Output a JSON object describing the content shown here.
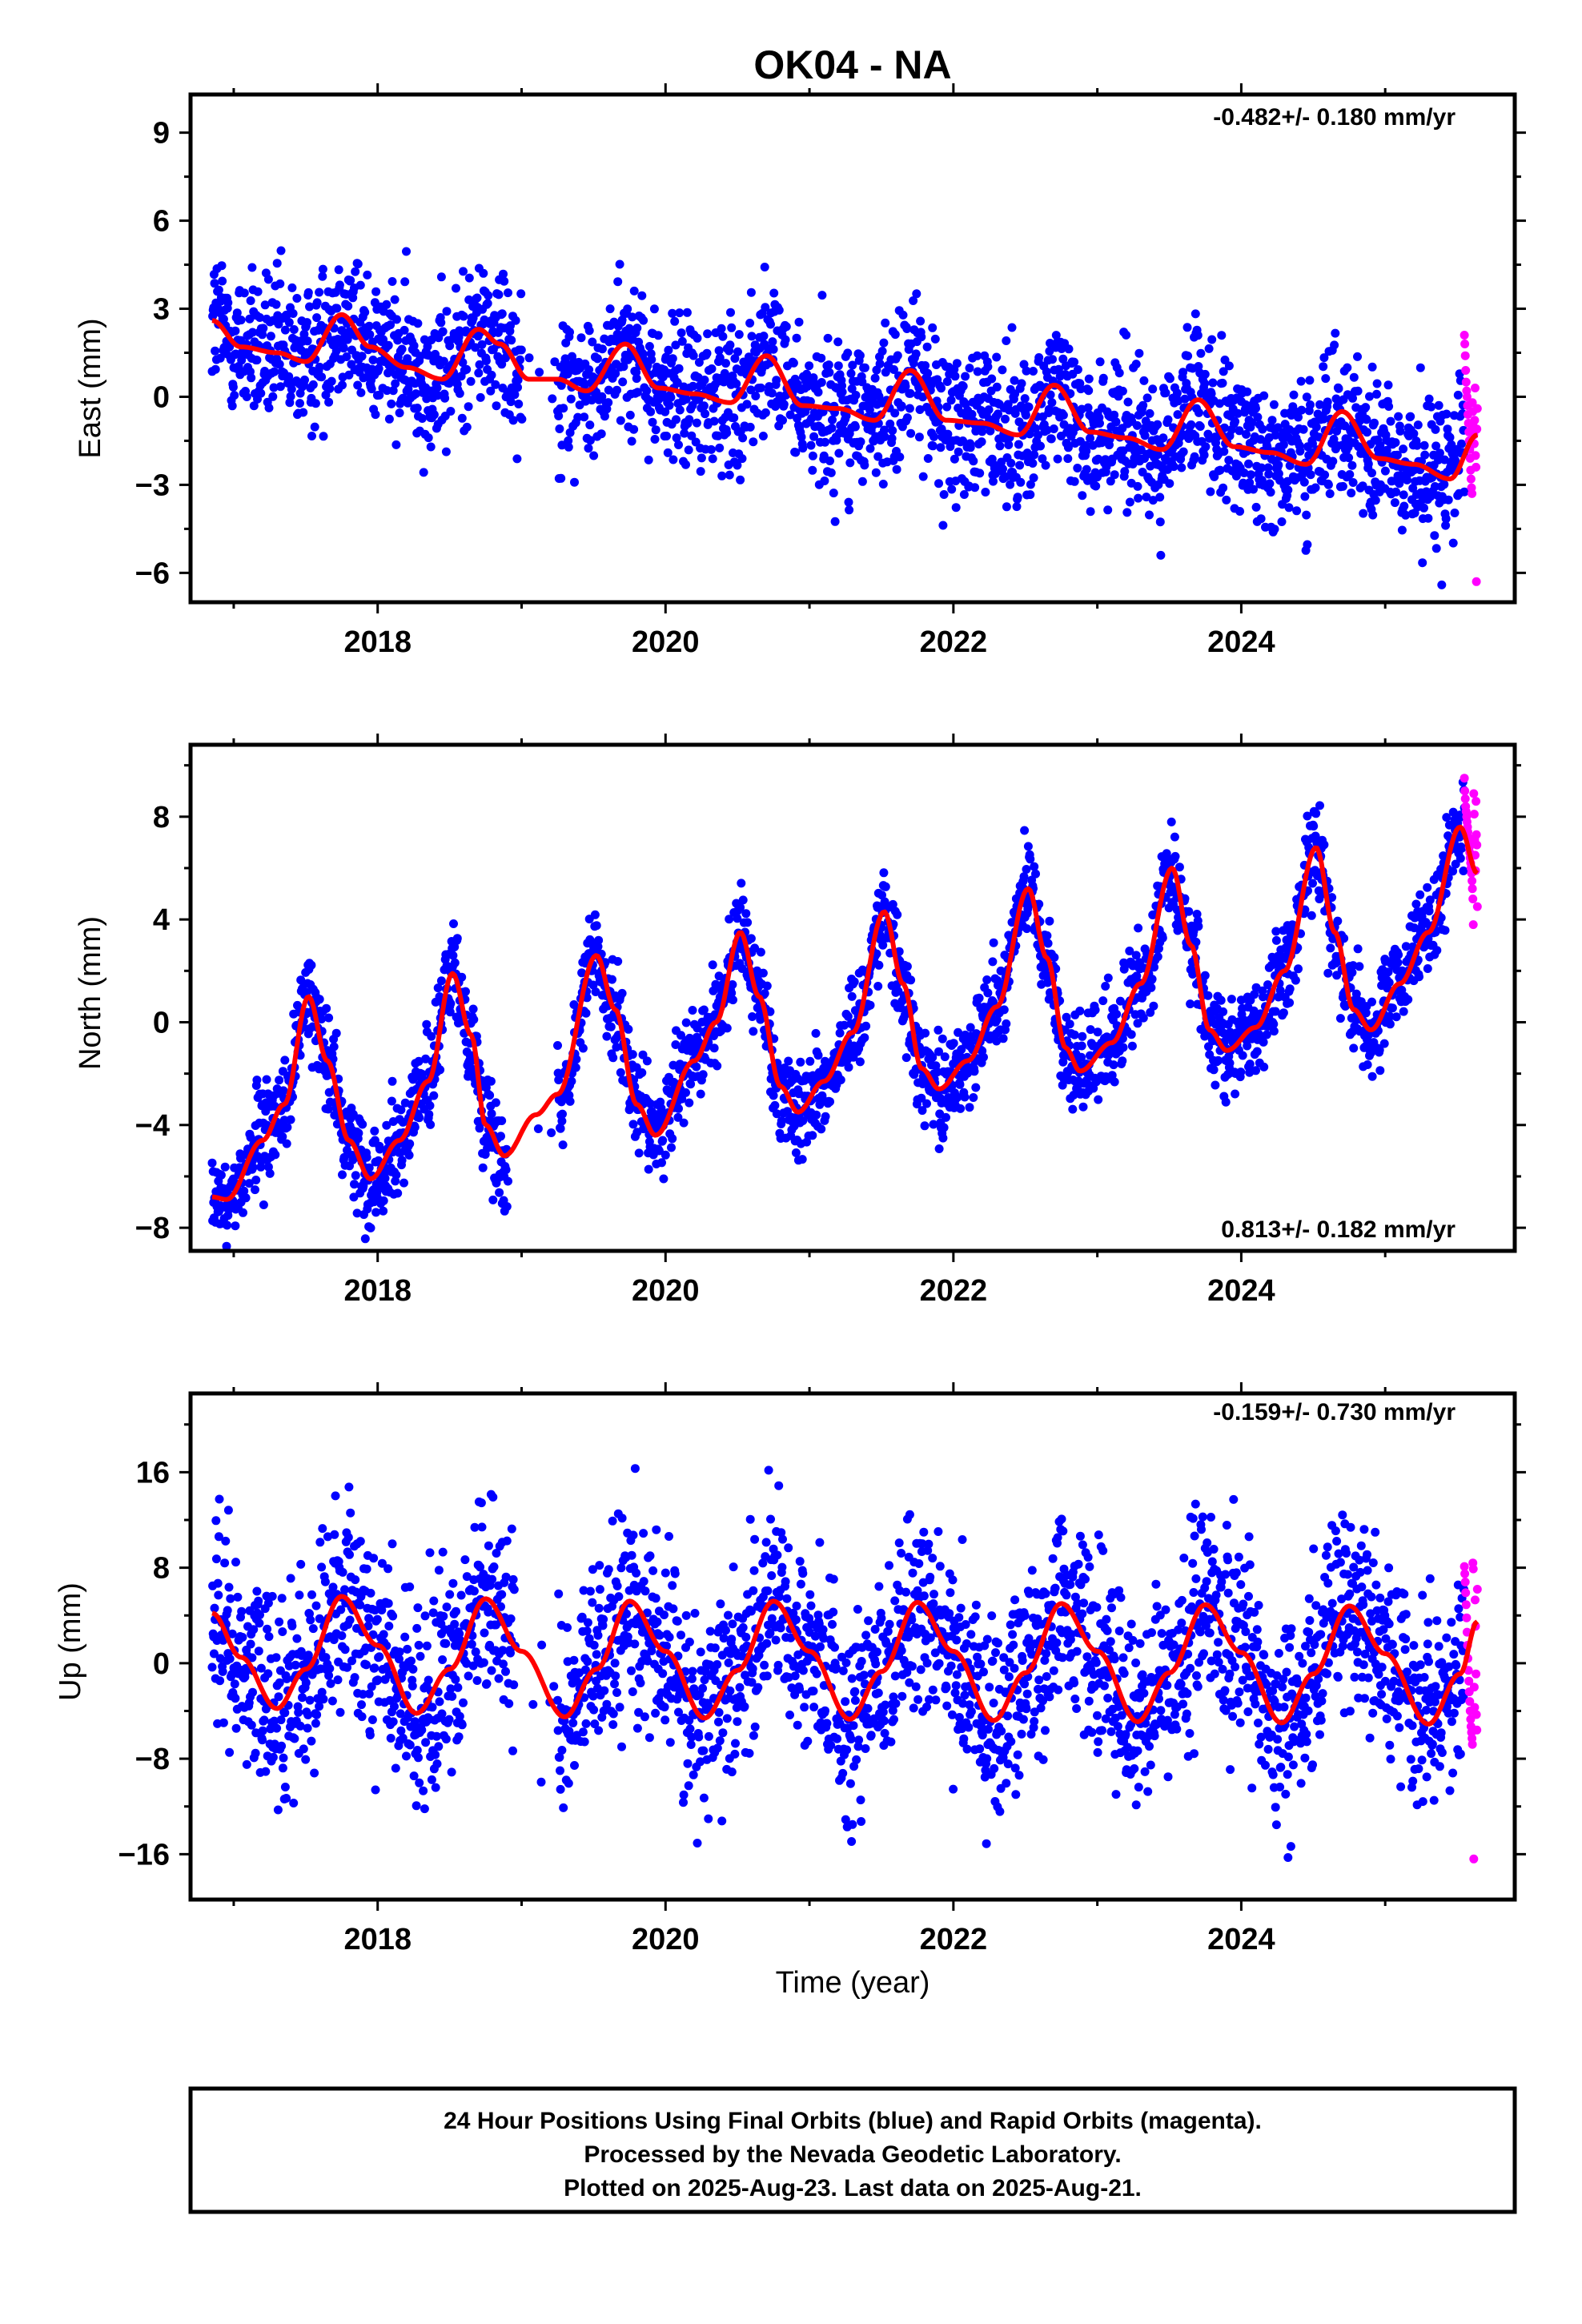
{
  "title": "OK04 - NA",
  "xlabel": "Time (year)",
  "footer": [
    "24 Hour Positions Using Final Orbits (blue) and Rapid Orbits (magenta).",
    "Processed by the Nevada Geodetic Laboratory.",
    "Plotted on 2025-Aug-23. Last data on 2025-Aug-21."
  ],
  "colors": {
    "final": "#0000ff",
    "rapid": "#ff00ff",
    "model": "#ff0000",
    "frame": "#000000"
  },
  "chart_data": [
    {
      "type": "scatter",
      "ylabel": "East (mm)",
      "rate_text": "-0.482+/- 0.180 mm/yr",
      "rate_position": "top-right",
      "xlim": [
        2016.7,
        2025.9
      ],
      "ylim": [
        -7,
        10.3
      ],
      "xticks": [
        2018,
        2020,
        2022,
        2024
      ],
      "xtick_labels": [
        "2018",
        "2020",
        "2022",
        "2024"
      ],
      "yticks": [
        -6,
        -3,
        0,
        3,
        6,
        9
      ],
      "ytick_labels": [
        "−6",
        "−3",
        "0",
        "3",
        "6",
        "9"
      ],
      "minor_yticks": [
        -4.5,
        -1.5,
        1.5,
        4.5,
        7.5
      ],
      "minor_xticks": [
        2017,
        2019,
        2021,
        2023,
        2025
      ],
      "series": [
        {
          "role": "final_orbits",
          "start": 2016.85,
          "end": 2025.55,
          "gap": [
            2019.0,
            2019.25
          ],
          "n": 2600,
          "offset": 2.0,
          "rate": -0.482,
          "annual_amp": 0.9,
          "annual_phase": 4.5,
          "noise": 1.3
        },
        {
          "role": "rapid_orbits",
          "start": 2025.55,
          "end": 2025.64,
          "n": 30,
          "values": [
            2.1,
            1.8,
            1.4,
            0.9,
            0.5,
            0.2,
            0.0,
            -0.3,
            -0.6,
            -0.9,
            -1.2,
            -1.5,
            -1.8,
            -2.1,
            -2.5,
            -2.8,
            -3.1,
            -3.3,
            -0.2,
            -0.5,
            -1.0,
            -1.3,
            -1.6,
            -0.8,
            0.3,
            -2.0,
            -2.4,
            -6.3,
            -1.1,
            -0.4
          ]
        },
        {
          "role": "model",
          "knots": [
            [
              2016.85,
              2.6
            ],
            [
              2017.05,
              1.7
            ],
            [
              2017.3,
              1.5
            ],
            [
              2017.5,
              1.2
            ],
            [
              2017.75,
              2.8
            ],
            [
              2017.95,
              1.7
            ],
            [
              2018.2,
              1.0
            ],
            [
              2018.45,
              0.6
            ],
            [
              2018.7,
              2.3
            ],
            [
              2018.85,
              1.8
            ],
            [
              2019.05,
              0.6
            ],
            [
              2019.25,
              0.6
            ],
            [
              2019.45,
              0.2
            ],
            [
              2019.72,
              1.8
            ],
            [
              2019.95,
              0.3
            ],
            [
              2020.2,
              0.1
            ],
            [
              2020.45,
              -0.2
            ],
            [
              2020.7,
              1.4
            ],
            [
              2020.95,
              -0.3
            ],
            [
              2021.2,
              -0.4
            ],
            [
              2021.45,
              -0.8
            ],
            [
              2021.7,
              0.9
            ],
            [
              2021.95,
              -0.8
            ],
            [
              2022.2,
              -0.9
            ],
            [
              2022.45,
              -1.3
            ],
            [
              2022.7,
              0.4
            ],
            [
              2022.95,
              -1.2
            ],
            [
              2023.2,
              -1.4
            ],
            [
              2023.45,
              -1.8
            ],
            [
              2023.7,
              -0.1
            ],
            [
              2023.95,
              -1.7
            ],
            [
              2024.2,
              -1.9
            ],
            [
              2024.45,
              -2.3
            ],
            [
              2024.7,
              -0.5
            ],
            [
              2024.95,
              -2.1
            ],
            [
              2025.2,
              -2.3
            ],
            [
              2025.45,
              -2.8
            ],
            [
              2025.64,
              -1.3
            ]
          ]
        }
      ]
    },
    {
      "type": "scatter",
      "ylabel": "North (mm)",
      "rate_text": "0.813+/- 0.182 mm/yr",
      "rate_position": "bottom-right",
      "xlim": [
        2016.7,
        2025.9
      ],
      "ylim": [
        -8.9,
        10.8
      ],
      "xticks": [
        2018,
        2020,
        2022,
        2024
      ],
      "xtick_labels": [
        "2018",
        "2020",
        "2022",
        "2024"
      ],
      "yticks": [
        -8,
        -4,
        0,
        4,
        8
      ],
      "ytick_labels": [
        "−8",
        "−4",
        "0",
        "4",
        "8"
      ],
      "minor_yticks": [
        -6,
        -2,
        2,
        6,
        10
      ],
      "minor_xticks": [
        2017,
        2019,
        2021,
        2023,
        2025
      ],
      "series": [
        {
          "role": "final_orbits",
          "start": 2016.85,
          "end": 2025.55,
          "gap": [
            2018.9,
            2019.25
          ],
          "n": 2600,
          "noise": 0.95
        },
        {
          "role": "rapid_orbits",
          "start": 2025.55,
          "end": 2025.64,
          "n": 30,
          "values": [
            9.5,
            9.0,
            8.7,
            8.4,
            8.2,
            8.0,
            7.8,
            7.6,
            7.4,
            7.2,
            7.0,
            6.8,
            6.6,
            6.4,
            6.2,
            6.0,
            5.8,
            5.5,
            5.2,
            4.8,
            3.8,
            8.9,
            8.1,
            7.1,
            6.5,
            5.9,
            8.6,
            7.3,
            6.9,
            4.5
          ]
        },
        {
          "role": "model",
          "knots": [
            [
              2016.85,
              -6.8
            ],
            [
              2016.95,
              -6.9
            ],
            [
              2017.2,
              -4.6
            ],
            [
              2017.35,
              -3.2
            ],
            [
              2017.52,
              1.0
            ],
            [
              2017.65,
              -1.5
            ],
            [
              2017.8,
              -4.6
            ],
            [
              2017.95,
              -6.1
            ],
            [
              2018.15,
              -4.6
            ],
            [
              2018.35,
              -2.3
            ],
            [
              2018.52,
              1.9
            ],
            [
              2018.65,
              -0.5
            ],
            [
              2018.75,
              -4.0
            ],
            [
              2018.88,
              -5.2
            ],
            [
              2019.1,
              -3.6
            ],
            [
              2019.25,
              -2.8
            ],
            [
              2019.52,
              2.6
            ],
            [
              2019.65,
              0.5
            ],
            [
              2019.8,
              -3.2
            ],
            [
              2019.93,
              -4.4
            ],
            [
              2020.2,
              -1.5
            ],
            [
              2020.35,
              0.0
            ],
            [
              2020.52,
              3.5
            ],
            [
              2020.65,
              1.0
            ],
            [
              2020.8,
              -2.5
            ],
            [
              2020.92,
              -3.5
            ],
            [
              2021.1,
              -2.3
            ],
            [
              2021.3,
              -0.4
            ],
            [
              2021.52,
              4.3
            ],
            [
              2021.65,
              1.5
            ],
            [
              2021.78,
              -1.8
            ],
            [
              2021.9,
              -2.6
            ],
            [
              2022.1,
              -1.5
            ],
            [
              2022.3,
              0.6
            ],
            [
              2022.52,
              5.2
            ],
            [
              2022.65,
              2.5
            ],
            [
              2022.78,
              -1.0
            ],
            [
              2022.88,
              -1.9
            ],
            [
              2023.1,
              -0.8
            ],
            [
              2023.3,
              1.5
            ],
            [
              2023.52,
              6.0
            ],
            [
              2023.65,
              3.0
            ],
            [
              2023.78,
              -0.3
            ],
            [
              2023.9,
              -1.1
            ],
            [
              2024.1,
              -0.2
            ],
            [
              2024.3,
              2.0
            ],
            [
              2024.52,
              6.8
            ],
            [
              2024.65,
              3.5
            ],
            [
              2024.78,
              0.5
            ],
            [
              2024.9,
              -0.3
            ],
            [
              2025.1,
              1.5
            ],
            [
              2025.3,
              3.5
            ],
            [
              2025.52,
              7.6
            ],
            [
              2025.64,
              5.8
            ]
          ]
        }
      ]
    },
    {
      "type": "scatter",
      "ylabel": "Up (mm)",
      "rate_text": "-0.159+/- 0.730 mm/yr",
      "rate_position": "top-right",
      "xlim": [
        2016.7,
        2025.9
      ],
      "ylim": [
        -19.8,
        22.6
      ],
      "xticks": [
        2018,
        2020,
        2022,
        2024
      ],
      "xtick_labels": [
        "2018",
        "2020",
        "2022",
        "2024"
      ],
      "yticks": [
        -16,
        -8,
        0,
        8,
        16
      ],
      "ytick_labels": [
        "−16",
        "−8",
        "0",
        "8",
        "16"
      ],
      "minor_yticks": [
        -12,
        -4,
        4,
        12,
        20
      ],
      "minor_xticks": [
        2017,
        2019,
        2021,
        2023,
        2025
      ],
      "series": [
        {
          "role": "final_orbits",
          "start": 2016.85,
          "end": 2025.55,
          "gap": [
            2018.95,
            2019.25
          ],
          "n": 2600,
          "noise": 4.2
        },
        {
          "role": "rapid_orbits",
          "start": 2025.55,
          "end": 2025.64,
          "n": 30,
          "values": [
            8.1,
            7.5,
            6.8,
            5.9,
            4.9,
            3.8,
            2.6,
            1.5,
            0.4,
            -0.6,
            -1.5,
            -2.4,
            -3.2,
            -4.0,
            -4.7,
            -5.3,
            -5.8,
            -6.3,
            -6.8,
            8.4,
            7.9,
            -16.4,
            -2.0,
            -3.7,
            5.3,
            3.1,
            -0.9,
            -4.3,
            -5.6,
            6.2
          ]
        },
        {
          "role": "model",
          "knots": [
            [
              2016.85,
              4.2
            ],
            [
              2017.05,
              0.5
            ],
            [
              2017.3,
              -3.8
            ],
            [
              2017.5,
              -0.5
            ],
            [
              2017.75,
              5.6
            ],
            [
              2018.0,
              1.5
            ],
            [
              2018.27,
              -4.2
            ],
            [
              2018.5,
              -0.5
            ],
            [
              2018.75,
              5.4
            ],
            [
              2019.0,
              1.0
            ],
            [
              2019.3,
              -4.5
            ],
            [
              2019.52,
              -0.5
            ],
            [
              2019.75,
              5.2
            ],
            [
              2020.0,
              1.0
            ],
            [
              2020.27,
              -4.6
            ],
            [
              2020.5,
              -0.6
            ],
            [
              2020.75,
              5.2
            ],
            [
              2021.0,
              1.0
            ],
            [
              2021.28,
              -4.7
            ],
            [
              2021.5,
              -0.7
            ],
            [
              2021.75,
              5.1
            ],
            [
              2022.0,
              1.0
            ],
            [
              2022.28,
              -4.8
            ],
            [
              2022.5,
              -0.8
            ],
            [
              2022.75,
              5.0
            ],
            [
              2023.0,
              1.0
            ],
            [
              2023.28,
              -4.9
            ],
            [
              2023.5,
              -0.8
            ],
            [
              2023.75,
              4.9
            ],
            [
              2024.0,
              0.9
            ],
            [
              2024.28,
              -5.0
            ],
            [
              2024.5,
              -0.9
            ],
            [
              2024.75,
              4.8
            ],
            [
              2025.0,
              0.8
            ],
            [
              2025.3,
              -5.1
            ],
            [
              2025.52,
              -0.9
            ],
            [
              2025.64,
              3.5
            ]
          ]
        }
      ]
    }
  ]
}
